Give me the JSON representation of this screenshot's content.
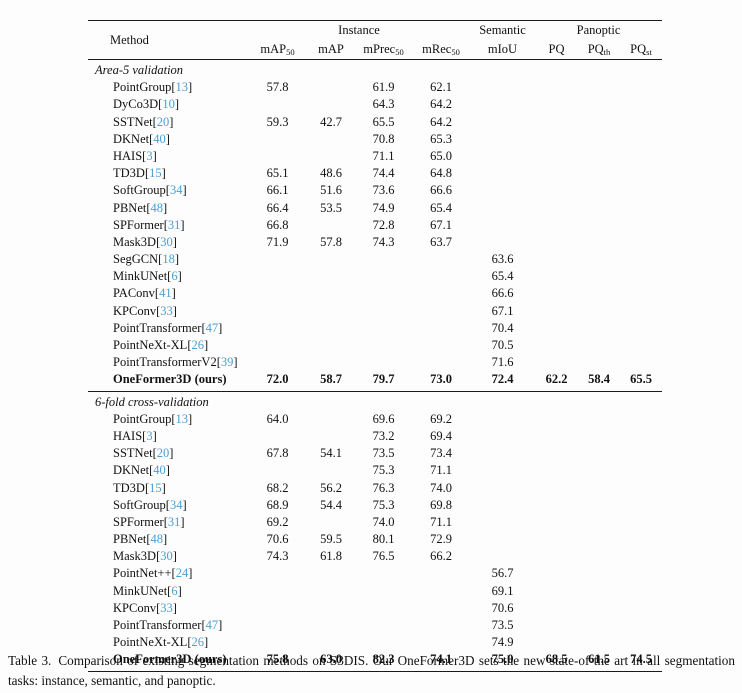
{
  "colors": {
    "citation": "#4a9fd4",
    "text": "#111111",
    "rule": "#1a1a1a",
    "background": "#fdfdfd"
  },
  "table": {
    "method_header": "Method",
    "groups": [
      {
        "label": "Instance"
      },
      {
        "label": "Semantic"
      },
      {
        "label": "Panoptic"
      }
    ],
    "columns": [
      {
        "base": "mAP",
        "sub": "50"
      },
      {
        "base": "mAP",
        "sub": ""
      },
      {
        "base": "mPrec",
        "sub": "50"
      },
      {
        "base": "mRec",
        "sub": "50"
      },
      {
        "base": "mIoU",
        "sub": ""
      },
      {
        "base": "PQ",
        "sub": ""
      },
      {
        "base": "PQ",
        "sub": "th"
      },
      {
        "base": "PQ",
        "sub": "st"
      }
    ],
    "sections": [
      {
        "label": "Area-5 validation",
        "rows": [
          {
            "method": "PointGroup",
            "cite": "13",
            "bold": false,
            "values": [
              "57.8",
              "",
              "61.9",
              "62.1",
              "",
              "",
              "",
              ""
            ]
          },
          {
            "method": "DyCo3D",
            "cite": "10",
            "bold": false,
            "values": [
              "",
              "",
              "64.3",
              "64.2",
              "",
              "",
              "",
              ""
            ]
          },
          {
            "method": "SSTNet",
            "cite": "20",
            "bold": false,
            "values": [
              "59.3",
              "42.7",
              "65.5",
              "64.2",
              "",
              "",
              "",
              ""
            ]
          },
          {
            "method": "DKNet",
            "cite": "40",
            "bold": false,
            "values": [
              "",
              "",
              "70.8",
              "65.3",
              "",
              "",
              "",
              ""
            ]
          },
          {
            "method": "HAIS",
            "cite": "3",
            "bold": false,
            "values": [
              "",
              "",
              "71.1",
              "65.0",
              "",
              "",
              "",
              ""
            ]
          },
          {
            "method": "TD3D",
            "cite": "15",
            "bold": false,
            "values": [
              "65.1",
              "48.6",
              "74.4",
              "64.8",
              "",
              "",
              "",
              ""
            ]
          },
          {
            "method": "SoftGroup",
            "cite": "34",
            "bold": false,
            "values": [
              "66.1",
              "51.6",
              "73.6",
              "66.6",
              "",
              "",
              "",
              ""
            ]
          },
          {
            "method": "PBNet",
            "cite": "48",
            "bold": false,
            "values": [
              "66.4",
              "53.5",
              "74.9",
              "65.4",
              "",
              "",
              "",
              ""
            ]
          },
          {
            "method": "SPFormer",
            "cite": "31",
            "bold": false,
            "values": [
              "66.8",
              "",
              "72.8",
              "67.1",
              "",
              "",
              "",
              ""
            ]
          },
          {
            "method": "Mask3D",
            "cite": "30",
            "bold": false,
            "values": [
              "71.9",
              "57.8",
              "74.3",
              "63.7",
              "",
              "",
              "",
              ""
            ]
          },
          {
            "method": "SegGCN",
            "cite": "18",
            "bold": false,
            "values": [
              "",
              "",
              "",
              "",
              "63.6",
              "",
              "",
              ""
            ]
          },
          {
            "method": "MinkUNet",
            "cite": "6",
            "bold": false,
            "values": [
              "",
              "",
              "",
              "",
              "65.4",
              "",
              "",
              ""
            ]
          },
          {
            "method": "PAConv",
            "cite": "41",
            "bold": false,
            "values": [
              "",
              "",
              "",
              "",
              "66.6",
              "",
              "",
              ""
            ]
          },
          {
            "method": "KPConv",
            "cite": "33",
            "bold": false,
            "values": [
              "",
              "",
              "",
              "",
              "67.1",
              "",
              "",
              ""
            ]
          },
          {
            "method": "PointTransformer",
            "cite": "47",
            "bold": false,
            "values": [
              "",
              "",
              "",
              "",
              "70.4",
              "",
              "",
              ""
            ]
          },
          {
            "method": "PointNeXt-XL",
            "cite": "26",
            "bold": false,
            "values": [
              "",
              "",
              "",
              "",
              "70.5",
              "",
              "",
              ""
            ]
          },
          {
            "method": "PointTransformerV2",
            "cite": "39",
            "bold": false,
            "values": [
              "",
              "",
              "",
              "",
              "71.6",
              "",
              "",
              ""
            ]
          },
          {
            "method": "OneFormer3D (ours)",
            "cite": null,
            "bold": true,
            "values": [
              "72.0",
              "58.7",
              "79.7",
              "73.0",
              "72.4",
              "62.2",
              "58.4",
              "65.5"
            ]
          }
        ]
      },
      {
        "label": "6-fold cross-validation",
        "rows": [
          {
            "method": "PointGroup",
            "cite": "13",
            "bold": false,
            "values": [
              "64.0",
              "",
              "69.6",
              "69.2",
              "",
              "",
              "",
              ""
            ]
          },
          {
            "method": "HAIS",
            "cite": "3",
            "bold": false,
            "values": [
              "",
              "",
              "73.2",
              "69.4",
              "",
              "",
              "",
              ""
            ]
          },
          {
            "method": "SSTNet",
            "cite": "20",
            "bold": false,
            "values": [
              "67.8",
              "54.1",
              "73.5",
              "73.4",
              "",
              "",
              "",
              ""
            ]
          },
          {
            "method": "DKNet",
            "cite": "40",
            "bold": false,
            "values": [
              "",
              "",
              "75.3",
              "71.1",
              "",
              "",
              "",
              ""
            ]
          },
          {
            "method": "TD3D",
            "cite": "15",
            "bold": false,
            "values": [
              "68.2",
              "56.2",
              "76.3",
              "74.0",
              "",
              "",
              "",
              ""
            ]
          },
          {
            "method": "SoftGroup",
            "cite": "34",
            "bold": false,
            "values": [
              "68.9",
              "54.4",
              "75.3",
              "69.8",
              "",
              "",
              "",
              ""
            ]
          },
          {
            "method": "SPFormer",
            "cite": "31",
            "bold": false,
            "values": [
              "69.2",
              "",
              "74.0",
              "71.1",
              "",
              "",
              "",
              ""
            ]
          },
          {
            "method": "PBNet",
            "cite": "48",
            "bold": false,
            "values": [
              "70.6",
              "59.5",
              "80.1",
              "72.9",
              "",
              "",
              "",
              ""
            ]
          },
          {
            "method": "Mask3D",
            "cite": "30",
            "bold": false,
            "values": [
              "74.3",
              "61.8",
              "76.5",
              "66.2",
              "",
              "",
              "",
              ""
            ]
          },
          {
            "method": "PointNet++",
            "cite": "24",
            "bold": false,
            "values": [
              "",
              "",
              "",
              "",
              "56.7",
              "",
              "",
              ""
            ]
          },
          {
            "method": "MinkUNet",
            "cite": "6",
            "bold": false,
            "values": [
              "",
              "",
              "",
              "",
              "69.1",
              "",
              "",
              ""
            ]
          },
          {
            "method": "KPConv",
            "cite": "33",
            "bold": false,
            "values": [
              "",
              "",
              "",
              "",
              "70.6",
              "",
              "",
              ""
            ]
          },
          {
            "method": "PointTransformer",
            "cite": "47",
            "bold": false,
            "values": [
              "",
              "",
              "",
              "",
              "73.5",
              "",
              "",
              ""
            ]
          },
          {
            "method": "PointNeXt-XL",
            "cite": "26",
            "bold": false,
            "values": [
              "",
              "",
              "",
              "",
              "74.9",
              "",
              "",
              ""
            ]
          },
          {
            "method": "OneFormer3D (ours)",
            "cite": null,
            "bold": true,
            "values": [
              "75.8",
              "63.0",
              "82.3",
              "74.1",
              "75.0",
              "68.5",
              "61.5",
              "74.5"
            ]
          }
        ]
      }
    ]
  },
  "caption": {
    "tag": "Table 3.",
    "text": "Comparison of existing segmentation methods on S3DIS. Our OneFormer3D sets the new state-of-the art in all segmentation tasks: instance, semantic, and panoptic."
  }
}
